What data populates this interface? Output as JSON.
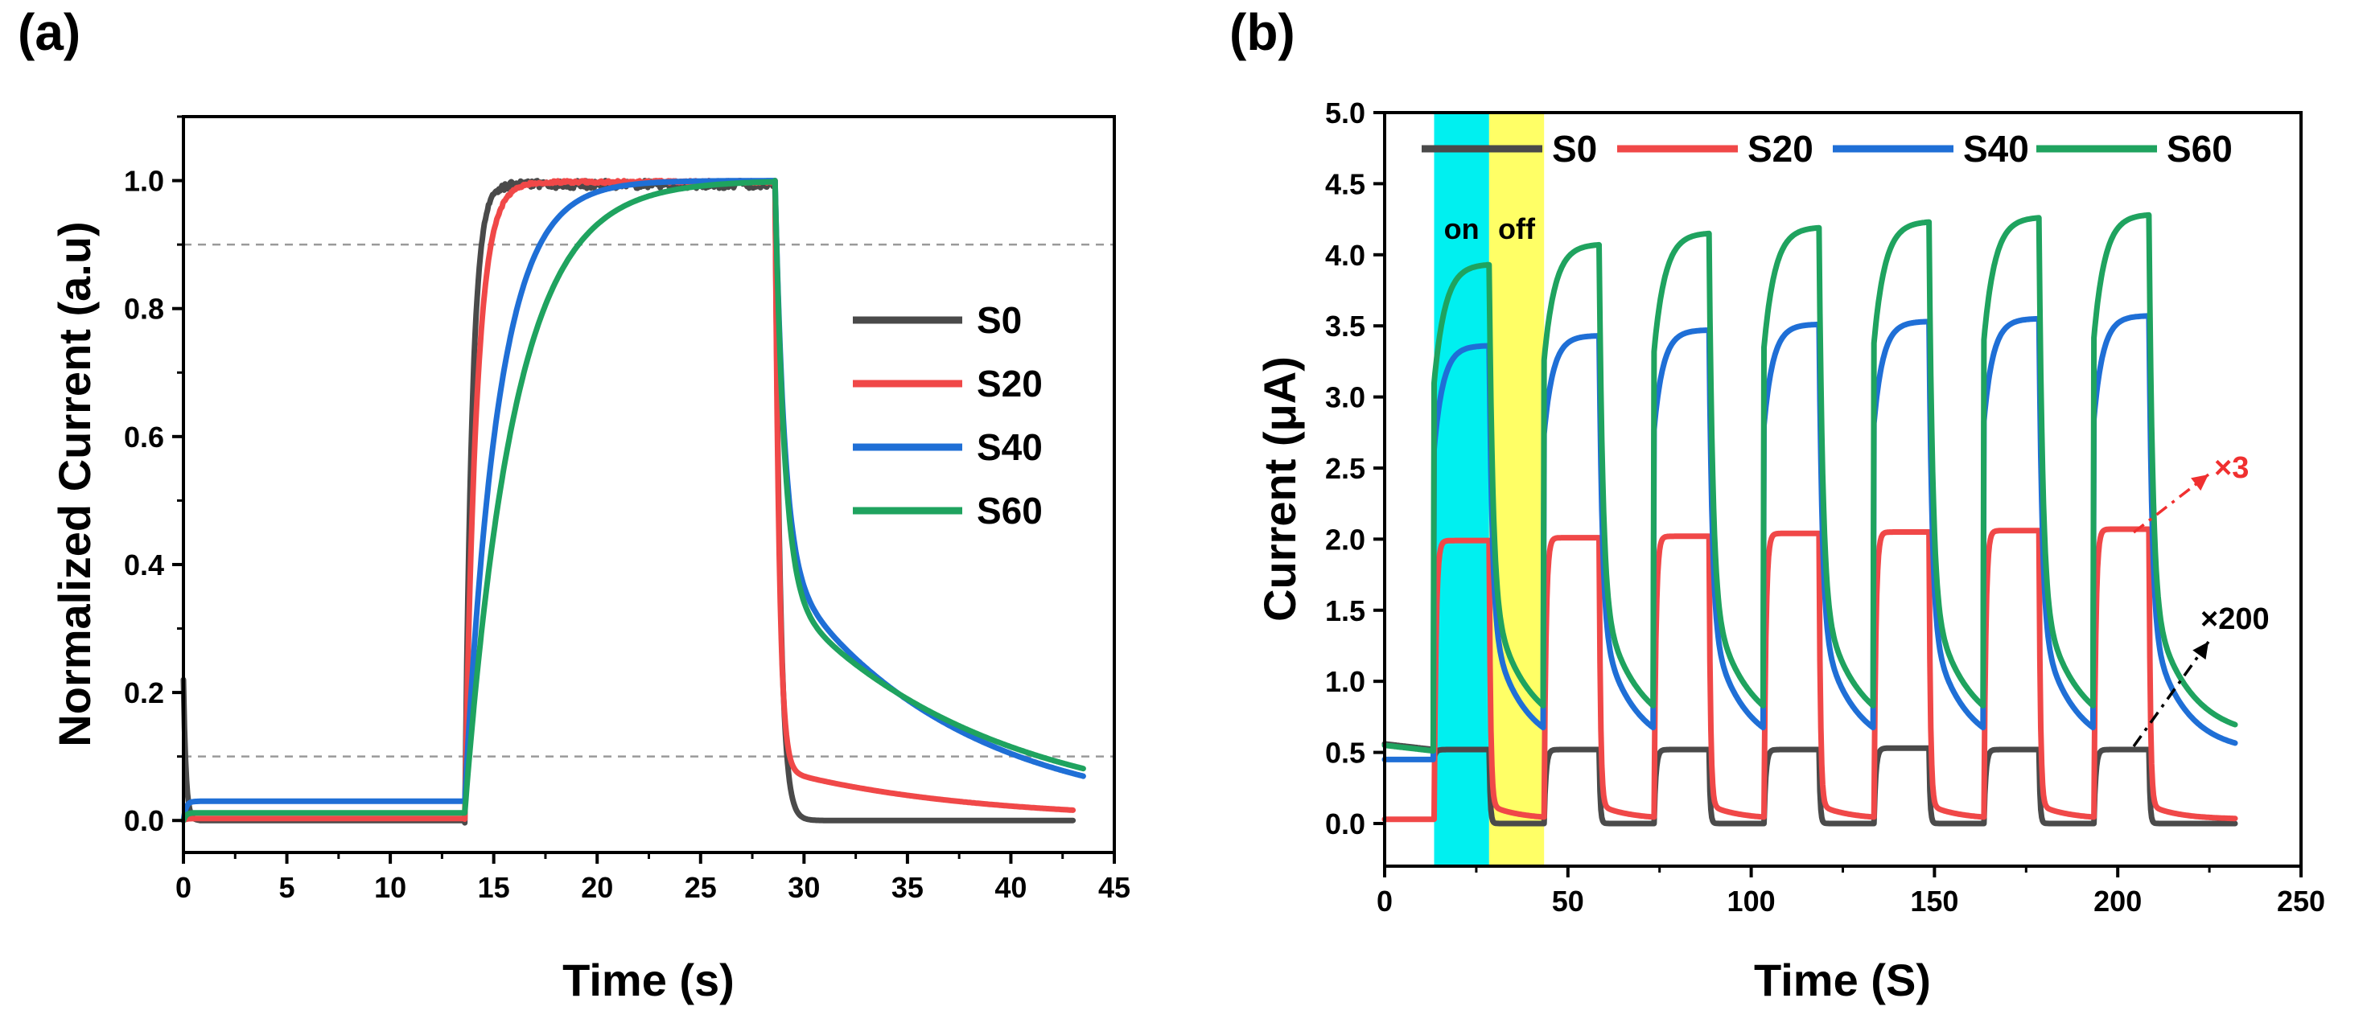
{
  "chart_data": [
    {
      "panel_label": "(a)",
      "type": "line",
      "xlabel": "Time (s)",
      "ylabel": "Normalized Current (a.u)",
      "xlim": [
        0,
        45
      ],
      "ylim": [
        -0.05,
        1.1
      ],
      "xticks": [
        0,
        5,
        10,
        15,
        20,
        25,
        30,
        35,
        40,
        45
      ],
      "yticks": [
        0.0,
        0.2,
        0.4,
        0.6,
        0.8,
        1.0
      ],
      "reference_lines": [
        0.1,
        0.9
      ],
      "legend_position": "right",
      "series": [
        {
          "name": "S0",
          "color": "#4a4a4a",
          "base": 0.0,
          "start": 0.22,
          "on_time": 13.6,
          "off_time": 28.6,
          "rise_tau": 0.35,
          "fall_fast": 0.25,
          "fall_slow_amp": 0.0,
          "fall_slow_tau": 3.0,
          "end": 43.0,
          "noise": 0.012
        },
        {
          "name": "S20",
          "color": "#f04848",
          "base": 0.003,
          "start": 0.0,
          "on_time": 13.6,
          "off_time": 28.6,
          "rise_tau": 0.55,
          "fall_fast": 0.2,
          "fall_slow_amp": 0.08,
          "fall_slow_tau": 9.0,
          "end": 43.0,
          "noise": 0.004
        },
        {
          "name": "S40",
          "color": "#1f6fd6",
          "base": 0.03,
          "start": 0.0,
          "on_time": 13.6,
          "off_time": 28.6,
          "rise_tau": 1.6,
          "fall_fast": 0.45,
          "fall_slow_amp": 0.4,
          "fall_slow_tau": 8.5,
          "end": 43.5,
          "noise": 0.0
        },
        {
          "name": "S60",
          "color": "#1fa35f",
          "base": 0.012,
          "start": 0.0,
          "on_time": 13.6,
          "off_time": 28.6,
          "rise_tau": 2.4,
          "fall_fast": 0.45,
          "fall_slow_amp": 0.36,
          "fall_slow_tau": 10.0,
          "end": 43.5,
          "noise": 0.0
        }
      ]
    },
    {
      "panel_label": "(b)",
      "type": "line",
      "xlabel": "Time (S)",
      "ylabel": "Current (μA)",
      "xlim": [
        0,
        250
      ],
      "ylim": [
        -0.3,
        5.0
      ],
      "xticks": [
        0,
        50,
        100,
        150,
        200,
        250
      ],
      "yticks": [
        0.0,
        0.5,
        1.0,
        1.5,
        2.0,
        2.5,
        3.0,
        3.5,
        4.0,
        4.5,
        5.0
      ],
      "cycle_start": 13.5,
      "period": 30,
      "on_duration": 15,
      "cycles": 7,
      "end_time": 232,
      "legend_position": "top",
      "highlights": [
        {
          "label": "on",
          "from": 13.5,
          "to": 28.5,
          "color": "#00f0f0"
        },
        {
          "label": "off",
          "from": 28.5,
          "to": 43.5,
          "color": "#ffff66"
        }
      ],
      "annotations": [
        {
          "text": "×3",
          "color": "#f03030",
          "from": [
            197,
            2.1
          ],
          "to": [
            218,
            2.55
          ]
        },
        {
          "text": "×200",
          "color": "#000000",
          "from": [
            197,
            0.55
          ],
          "to": [
            218,
            1.4
          ]
        }
      ],
      "series": [
        {
          "name": "S0",
          "color": "#4a4a4a",
          "start_level": 0.56,
          "dark": 0.0,
          "on_peaks": [
            0.52,
            0.52,
            0.52,
            0.52,
            0.53,
            0.52,
            0.52
          ],
          "rise_tau": 0.5,
          "fall_fast": 0.3,
          "fall_slow_amp": 0.0,
          "fall_slow_tau": 4
        },
        {
          "name": "S20",
          "color": "#f04848",
          "start_level": 0.03,
          "dark": 0.03,
          "on_peaks": [
            1.99,
            2.01,
            2.02,
            2.04,
            2.05,
            2.06,
            2.07
          ],
          "rise_tau": 0.5,
          "fall_fast": 0.4,
          "fall_slow_amp": 0.1,
          "fall_slow_tau": 8
        },
        {
          "name": "S40",
          "color": "#1f6fd6",
          "start_level": 0.45,
          "dark": 0.5,
          "on_peaks": [
            3.36,
            3.43,
            3.47,
            3.51,
            3.53,
            3.55,
            3.57
          ],
          "rise_tau": 2.5,
          "fall_fast": 0.9,
          "fall_slow_amp": 0.9,
          "fall_slow_tau": 9
        },
        {
          "name": "S60",
          "color": "#1fa35f",
          "start_level": 0.55,
          "dark": 0.6,
          "on_peaks": [
            3.93,
            4.07,
            4.15,
            4.19,
            4.23,
            4.26,
            4.28
          ],
          "rise_tau": 3.0,
          "fall_fast": 1.0,
          "fall_slow_amp": 1.0,
          "fall_slow_tau": 10
        }
      ]
    }
  ]
}
